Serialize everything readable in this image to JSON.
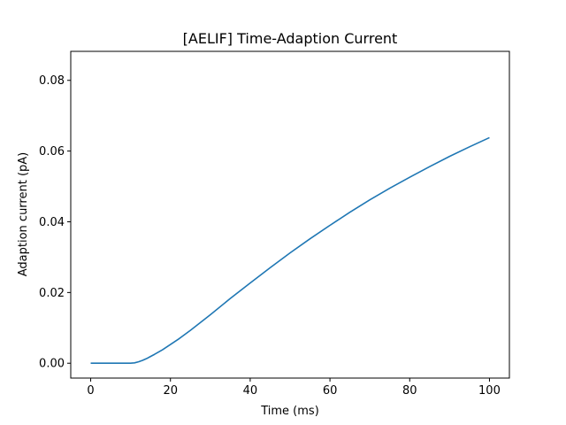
{
  "chart_data": {
    "type": "line",
    "title": "[AELIF] Time-Adaption Current",
    "xlabel": "Time (ms)",
    "ylabel": "Adaption current (pA)",
    "xlim": [
      -5,
      105
    ],
    "ylim": [
      -0.0042,
      0.0882
    ],
    "xticks": [
      0,
      20,
      40,
      60,
      80,
      100
    ],
    "xtick_labels": [
      "0",
      "20",
      "40",
      "60",
      "80",
      "100"
    ],
    "yticks": [
      0.0,
      0.02,
      0.04,
      0.06,
      0.08
    ],
    "ytick_labels": [
      "0.00",
      "0.02",
      "0.04",
      "0.06",
      "0.08"
    ],
    "grid": false,
    "series": [
      {
        "color": "#1f77b4",
        "x": [
          0,
          5,
          10,
          11,
          12,
          13,
          14,
          15,
          16,
          18,
          20,
          22,
          25,
          30,
          35,
          40,
          45,
          50,
          55,
          60,
          65,
          70,
          75,
          80,
          85,
          90,
          95,
          100
        ],
        "y": [
          0.0,
          0.0,
          0.0,
          0.0001,
          0.0004,
          0.0008,
          0.0013,
          0.0019,
          0.0025,
          0.0038,
          0.0053,
          0.0068,
          0.0093,
          0.0137,
          0.0183,
          0.0227,
          0.027,
          0.0312,
          0.0352,
          0.039,
          0.0427,
          0.0462,
          0.0495,
          0.0526,
          0.0556,
          0.0585,
          0.0612,
          0.0638
        ]
      }
    ]
  }
}
